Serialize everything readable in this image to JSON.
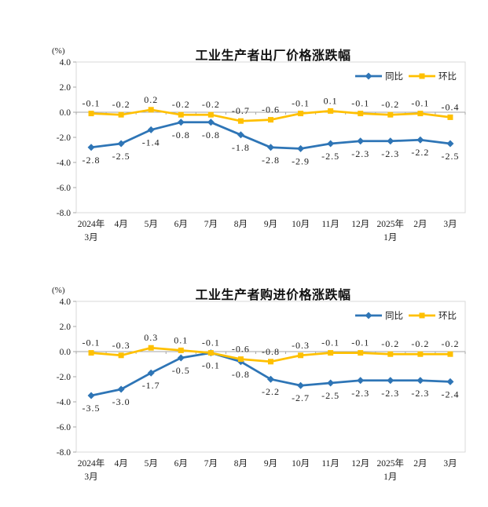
{
  "page": {
    "background": "#ffffff"
  },
  "chart_data": [
    {
      "type": "line",
      "title": "工业生产者出厂价格涨跌幅",
      "unit_label": "(%)",
      "ylim": [
        -8.0,
        4.0
      ],
      "ytick_step": 2.0,
      "grid": false,
      "legend_position": "top-right",
      "categories": [
        "2024年\n3月",
        "4月",
        "5月",
        "6月",
        "7月",
        "8月",
        "9月",
        "10月",
        "11月",
        "12月",
        "2025年\n1月",
        "2月",
        "3月"
      ],
      "series": [
        {
          "name": "同比",
          "color": "#2E75B6",
          "marker": "diamond",
          "values": [
            -2.8,
            -2.5,
            -1.4,
            -0.8,
            -0.8,
            -1.8,
            -2.8,
            -2.9,
            -2.5,
            -2.3,
            -2.3,
            -2.2,
            -2.5
          ]
        },
        {
          "name": "环比",
          "color": "#FFC000",
          "marker": "square",
          "values": [
            -0.1,
            -0.2,
            0.2,
            -0.2,
            -0.2,
            -0.7,
            -0.6,
            -0.1,
            0.1,
            -0.1,
            -0.2,
            -0.1,
            -0.4
          ]
        }
      ]
    },
    {
      "type": "line",
      "title": "工业生产者购进价格涨跌幅",
      "unit_label": "(%)",
      "ylim": [
        -8.0,
        4.0
      ],
      "ytick_step": 2.0,
      "grid": false,
      "legend_position": "top-right",
      "categories": [
        "2024年\n3月",
        "4月",
        "5月",
        "6月",
        "7月",
        "8月",
        "9月",
        "10月",
        "11月",
        "12月",
        "2025年\n1月",
        "2月",
        "3月"
      ],
      "series": [
        {
          "name": "同比",
          "color": "#2E75B6",
          "marker": "diamond",
          "values": [
            -3.5,
            -3.0,
            -1.7,
            -0.5,
            -0.1,
            -0.8,
            -2.2,
            -2.7,
            -2.5,
            -2.3,
            -2.3,
            -2.3,
            -2.4
          ]
        },
        {
          "name": "环比",
          "color": "#FFC000",
          "marker": "square",
          "values": [
            -0.1,
            -0.3,
            0.3,
            0.1,
            -0.1,
            -0.6,
            -0.8,
            -0.3,
            -0.1,
            -0.1,
            -0.2,
            -0.2,
            -0.2
          ]
        }
      ]
    }
  ]
}
